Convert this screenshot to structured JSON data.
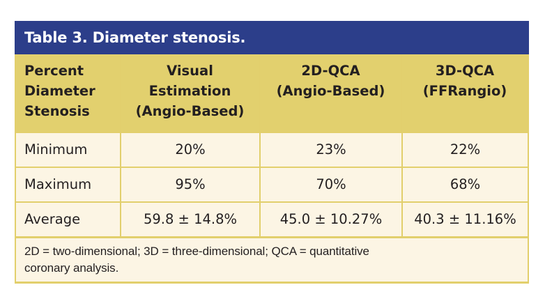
{
  "table": {
    "title": "Table 3. Diameter stenosis.",
    "headers": [
      {
        "lines": [
          "Percent",
          "Diameter",
          "Stenosis"
        ]
      },
      {
        "lines": [
          "Visual",
          "Estimation",
          "(Angio-Based)"
        ]
      },
      {
        "lines": [
          "2D-QCA",
          "(Angio-Based)"
        ]
      },
      {
        "lines": [
          "3D-QCA",
          "(FFRangio)"
        ]
      }
    ],
    "rows": [
      {
        "label": "Minimum",
        "visual": "20%",
        "qca2d": "23%",
        "qca3d": "22%"
      },
      {
        "label": "Maximum",
        "visual": "95%",
        "qca2d": "70%",
        "qca3d": "68%"
      },
      {
        "label": "Average",
        "visual": "59.8 ± 14.8%",
        "qca2d": "45.0 ± 10.27%",
        "qca3d": "40.3 ± 11.16%"
      }
    ],
    "footnote": {
      "line1": "2D = two-dimensional; 3D = three-dimensional; QCA = quantitative",
      "line2": "coronary analysis."
    }
  },
  "colors": {
    "title_bg": "#2c3e8a",
    "header_bg": "#e2d06e",
    "body_bg": "#fcf5e4",
    "border": "#e2cf6c",
    "text": "#231f20"
  }
}
